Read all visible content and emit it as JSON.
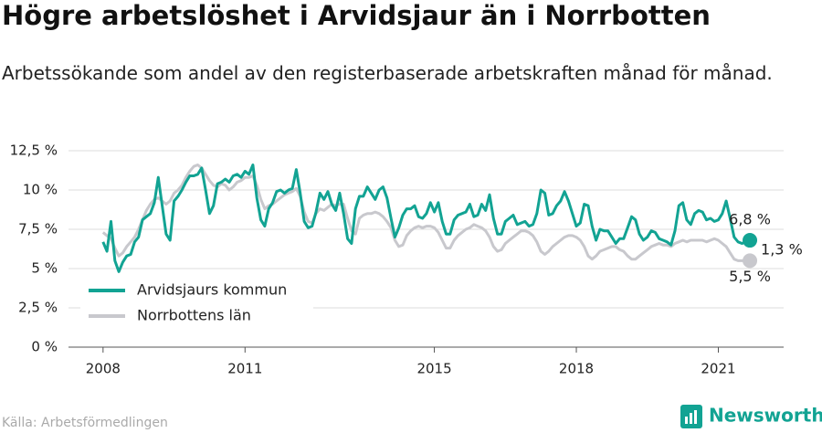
{
  "chart_data": {
    "type": "line",
    "title": "Högre arbetslöshet i Arvidsjaur än i Norrbotten",
    "subtitle": "Arbetssökande som andel av den registerbaserade arbetskraften månad för månad.",
    "source": "Källa: Arbetsförmedlingen",
    "brand": "Newsworthy",
    "legend": "bottom-left",
    "grid": true,
    "x": [
      "2008-01",
      "2008-02",
      "2008-03",
      "2008-04",
      "2008-05",
      "2008-06",
      "2008-07",
      "2008-08",
      "2008-09",
      "2008-10",
      "2008-11",
      "2008-12",
      "2009-01",
      "2009-02",
      "2009-03",
      "2009-04",
      "2009-05",
      "2009-06",
      "2009-07",
      "2009-08",
      "2009-09",
      "2009-10",
      "2009-11",
      "2009-12",
      "2010-01",
      "2010-02",
      "2010-03",
      "2010-04",
      "2010-05",
      "2010-06",
      "2010-07",
      "2010-08",
      "2010-09",
      "2010-10",
      "2010-11",
      "2010-12",
      "2011-01",
      "2011-02",
      "2011-03",
      "2011-04",
      "2011-05",
      "2011-06",
      "2011-07",
      "2011-08",
      "2011-09",
      "2011-10",
      "2011-11",
      "2011-12",
      "2012-01",
      "2012-02",
      "2012-03",
      "2012-04",
      "2012-05",
      "2012-06",
      "2012-07",
      "2012-08",
      "2012-09",
      "2012-10",
      "2012-11",
      "2012-12",
      "2013-01",
      "2013-02",
      "2013-03",
      "2013-04",
      "2013-05",
      "2013-06",
      "2013-07",
      "2013-08",
      "2013-09",
      "2013-10",
      "2013-11",
      "2013-12",
      "2014-01",
      "2014-02",
      "2014-03",
      "2014-04",
      "2014-05",
      "2014-06",
      "2014-07",
      "2014-08",
      "2014-09",
      "2014-10",
      "2014-11",
      "2014-12",
      "2015-01",
      "2015-02",
      "2015-03",
      "2015-04",
      "2015-05",
      "2015-06",
      "2015-07",
      "2015-08",
      "2015-09",
      "2015-10",
      "2015-11",
      "2015-12",
      "2016-01",
      "2016-02",
      "2016-03",
      "2016-04",
      "2016-05",
      "2016-06",
      "2016-07",
      "2016-08",
      "2016-09",
      "2016-10",
      "2016-11",
      "2016-12",
      "2017-01",
      "2017-02",
      "2017-03",
      "2017-04",
      "2017-05",
      "2017-06",
      "2017-07",
      "2017-08",
      "2017-09",
      "2017-10",
      "2017-11",
      "2017-12",
      "2018-01",
      "2018-02",
      "2018-03",
      "2018-04",
      "2018-05",
      "2018-06",
      "2018-07",
      "2018-08",
      "2018-09",
      "2018-10",
      "2018-11",
      "2018-12",
      "2019-01",
      "2019-02",
      "2019-03",
      "2019-04",
      "2019-05",
      "2019-06",
      "2019-07",
      "2019-08",
      "2019-09",
      "2019-10",
      "2019-11",
      "2019-12",
      "2020-01",
      "2020-02",
      "2020-03",
      "2020-04",
      "2020-05",
      "2020-06",
      "2020-07",
      "2020-08",
      "2020-09",
      "2020-10",
      "2020-11",
      "2020-12",
      "2021-01",
      "2021-02",
      "2021-03",
      "2021-04",
      "2021-05",
      "2021-06",
      "2021-07",
      "2021-08",
      "2021-09"
    ],
    "series": [
      {
        "name": "Arvidsjaurs kommun",
        "color": "#12a393",
        "values": [
          6.7,
          6.1,
          8.0,
          5.5,
          4.8,
          5.4,
          5.8,
          5.9,
          6.7,
          7.0,
          8.1,
          8.3,
          8.5,
          9.2,
          10.8,
          9.0,
          7.2,
          6.8,
          9.3,
          9.6,
          10.0,
          10.5,
          10.9,
          10.9,
          11.0,
          11.4,
          10.0,
          8.5,
          9.0,
          10.4,
          10.5,
          10.7,
          10.5,
          10.9,
          11.0,
          10.8,
          11.2,
          11.0,
          11.6,
          9.5,
          8.1,
          7.7,
          8.8,
          9.2,
          9.9,
          10.0,
          9.8,
          10.0,
          10.1,
          11.3,
          9.8,
          8.0,
          7.6,
          7.7,
          8.6,
          9.8,
          9.4,
          9.9,
          9.1,
          8.7,
          9.8,
          8.5,
          6.9,
          6.6,
          8.8,
          9.6,
          9.6,
          10.2,
          9.8,
          9.4,
          10.0,
          10.2,
          9.5,
          8.2,
          7.0,
          7.6,
          8.4,
          8.8,
          8.8,
          9.0,
          8.3,
          8.2,
          8.5,
          9.2,
          8.6,
          9.2,
          8.0,
          7.2,
          7.2,
          8.1,
          8.4,
          8.5,
          8.6,
          9.1,
          8.3,
          8.4,
          9.1,
          8.7,
          9.7,
          8.2,
          7.2,
          7.2,
          8.0,
          8.2,
          8.4,
          7.8,
          7.9,
          8.0,
          7.7,
          7.8,
          8.5,
          10.0,
          9.8,
          8.4,
          8.5,
          9.0,
          9.3,
          9.9,
          9.3,
          8.5,
          7.7,
          7.9,
          9.1,
          9.0,
          7.7,
          6.8,
          7.5,
          7.4,
          7.4,
          7.0,
          6.6,
          6.9,
          6.9,
          7.6,
          8.3,
          8.1,
          7.2,
          6.8,
          7.0,
          7.4,
          7.3,
          6.9,
          6.8,
          6.7,
          6.5,
          7.4,
          9.0,
          9.2,
          8.1,
          7.8,
          8.5,
          8.7,
          8.6,
          8.1,
          8.2,
          8.0,
          8.1,
          8.5,
          9.3,
          8.2,
          7.0,
          6.7,
          6.6,
          6.7,
          6.8
        ]
      },
      {
        "name": "Norrbottens län",
        "color": "#c8c8cd",
        "values": [
          7.3,
          7.1,
          6.9,
          6.3,
          5.8,
          6.0,
          6.4,
          6.7,
          7.0,
          7.5,
          8.1,
          8.7,
          9.1,
          9.4,
          9.5,
          9.3,
          9.1,
          9.3,
          9.8,
          10.0,
          10.3,
          10.8,
          11.2,
          11.5,
          11.6,
          11.4,
          11.0,
          10.6,
          10.3,
          10.2,
          10.4,
          10.3,
          10.0,
          10.2,
          10.5,
          10.6,
          10.8,
          10.8,
          10.9,
          10.3,
          9.4,
          8.8,
          9.0,
          9.1,
          9.3,
          9.5,
          9.7,
          9.8,
          9.9,
          10.1,
          9.6,
          8.6,
          8.0,
          7.9,
          8.5,
          8.8,
          8.7,
          8.9,
          9.1,
          9.0,
          9.1,
          9.1,
          8.2,
          7.4,
          7.2,
          8.2,
          8.4,
          8.5,
          8.5,
          8.6,
          8.5,
          8.3,
          8.0,
          7.6,
          6.8,
          6.4,
          6.5,
          7.1,
          7.4,
          7.6,
          7.7,
          7.6,
          7.7,
          7.7,
          7.6,
          7.3,
          6.8,
          6.3,
          6.3,
          6.8,
          7.1,
          7.3,
          7.5,
          7.6,
          7.8,
          7.7,
          7.6,
          7.4,
          7.0,
          6.4,
          6.1,
          6.2,
          6.6,
          6.8,
          7.0,
          7.2,
          7.4,
          7.4,
          7.3,
          7.1,
          6.7,
          6.1,
          5.9,
          6.1,
          6.4,
          6.6,
          6.8,
          7.0,
          7.1,
          7.1,
          7.0,
          6.8,
          6.4,
          5.8,
          5.6,
          5.8,
          6.1,
          6.2,
          6.3,
          6.4,
          6.4,
          6.2,
          6.1,
          5.8,
          5.6,
          5.6,
          5.8,
          6.0,
          6.2,
          6.4,
          6.5,
          6.6,
          6.5,
          6.5,
          6.4,
          6.6,
          6.7,
          6.8,
          6.7,
          6.8,
          6.8,
          6.8,
          6.8,
          6.7,
          6.8,
          6.9,
          6.8,
          6.6,
          6.4,
          6.0,
          5.6,
          5.5,
          5.5,
          5.5,
          5.5
        ]
      }
    ],
    "annotations": [
      "6,8 %",
      "1,3 %",
      "5,5 %"
    ],
    "xlim": [
      2007.27,
      2022.38
    ],
    "xticks": [
      2008,
      2011,
      2015,
      2018,
      2021
    ],
    "ylim": [
      0,
      12.5
    ],
    "yticks": [
      {
        "value": 0,
        "label": "0 %"
      },
      {
        "value": 2.5,
        "label": "2,5 %"
      },
      {
        "value": 5,
        "label": "5 %"
      },
      {
        "value": 7.5,
        "label": "7,5 %"
      },
      {
        "value": 10,
        "label": "10 %"
      },
      {
        "value": 12.5,
        "label": "12,5 %"
      }
    ]
  }
}
